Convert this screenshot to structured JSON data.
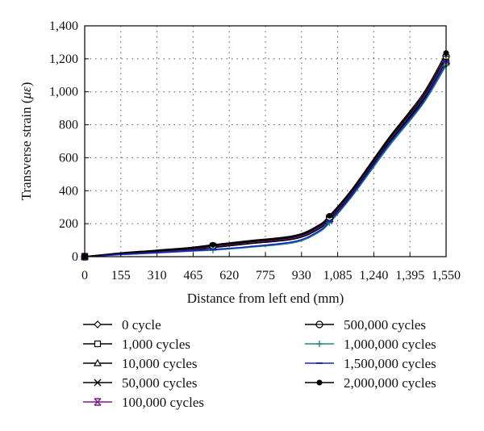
{
  "chart_data": {
    "type": "line",
    "title": "",
    "xlabel": "Distance from left end (mm)",
    "ylabel_prefix": "Transverse strain (",
    "ylabel_unit": "με",
    "ylabel_suffix": ")",
    "xlim": [
      0,
      1550
    ],
    "ylim": [
      0,
      1400
    ],
    "x_ticks": [
      0,
      155,
      310,
      465,
      620,
      775,
      930,
      1085,
      1240,
      1395,
      1550
    ],
    "x_tick_labels": [
      "0",
      "155",
      "310",
      "465",
      "620",
      "775",
      "930",
      "1,085",
      "1,240",
      "1,395",
      "1,550"
    ],
    "y_ticks": [
      0,
      200,
      400,
      600,
      800,
      1000,
      1200,
      1400
    ],
    "y_tick_labels": [
      "0",
      "200",
      "400",
      "600",
      "800",
      "1,000",
      "1,200",
      "1,400"
    ],
    "grid": true,
    "legend_position": "bottom",
    "x": [
      0,
      150,
      300,
      450,
      550,
      700,
      900,
      1000,
      1050,
      1150,
      1300,
      1450,
      1550
    ],
    "marker_x": [
      0,
      550,
      1050,
      1550
    ],
    "series": [
      {
        "name": "0 cycle",
        "color": "#000000",
        "marker": "diamond-open",
        "values": [
          0,
          14,
          24,
          38,
          55,
          78,
          108,
          165,
          225,
          390,
          680,
          940,
          1170
        ]
      },
      {
        "name": "1,000 cycles",
        "color": "#000000",
        "marker": "square-open",
        "values": [
          0,
          14,
          25,
          39,
          56,
          79,
          109,
          166,
          227,
          392,
          683,
          945,
          1178
        ]
      },
      {
        "name": "10,000 cycles",
        "color": "#000000",
        "marker": "triangle-open",
        "values": [
          0,
          15,
          26,
          40,
          57,
          80,
          111,
          168,
          228,
          394,
          686,
          950,
          1185
        ]
      },
      {
        "name": "50,000 cycles",
        "color": "#000000",
        "marker": "x",
        "values": [
          0,
          16,
          28,
          42,
          60,
          83,
          114,
          172,
          232,
          398,
          692,
          958,
          1195
        ]
      },
      {
        "name": "100,000 cycles",
        "color": "#7a1a8c",
        "marker": "x-bar",
        "values": [
          0,
          17,
          30,
          44,
          62,
          85,
          116,
          174,
          234,
          400,
          696,
          962,
          1200
        ]
      },
      {
        "name": "500,000 cycles",
        "color": "#000000",
        "marker": "circle-line",
        "values": [
          0,
          19,
          33,
          48,
          66,
          89,
          121,
          180,
          240,
          406,
          702,
          970,
          1215
        ]
      },
      {
        "name": "1,000,000 cycles",
        "color": "#1a8a80",
        "marker": "plus",
        "values": [
          0,
          12,
          22,
          33,
          40,
          56,
          86,
          145,
          205,
          372,
          660,
          925,
          1160
        ]
      },
      {
        "name": "1,500,000 cycles",
        "color": "#1a23c8",
        "marker": "dash",
        "values": [
          0,
          13,
          23,
          35,
          44,
          60,
          92,
          152,
          212,
          380,
          672,
          935,
          1180
        ]
      },
      {
        "name": "2,000,000 cycles",
        "color": "#000000",
        "marker": "dot",
        "values": [
          0,
          22,
          38,
          55,
          72,
          96,
          128,
          188,
          248,
          415,
          712,
          985,
          1235
        ]
      }
    ]
  }
}
